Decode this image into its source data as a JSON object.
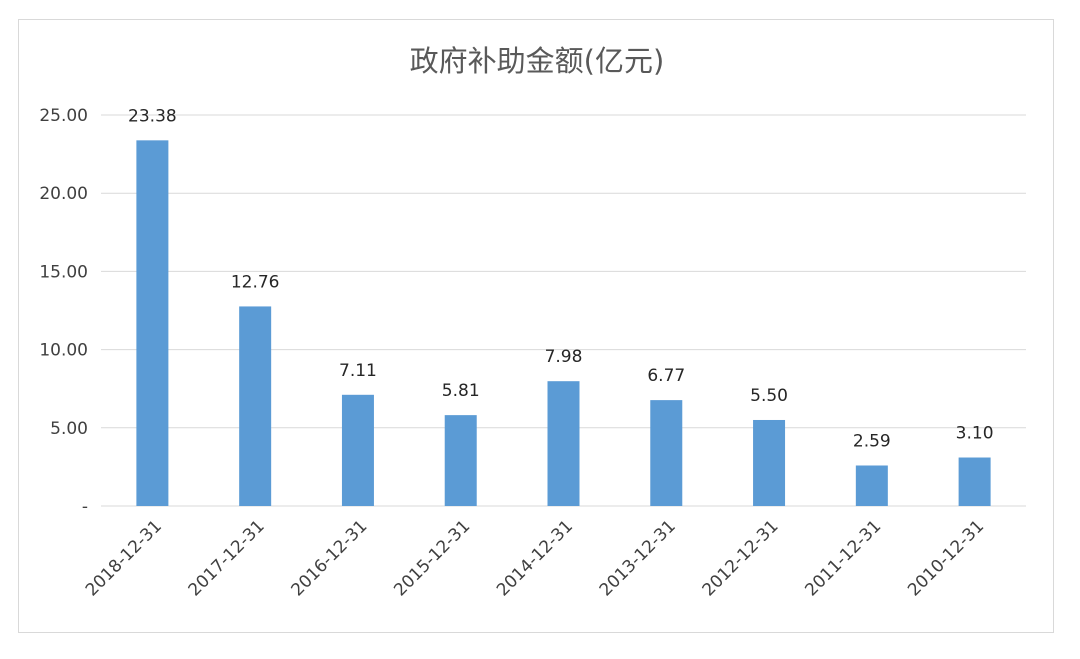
{
  "chart_data": {
    "type": "bar",
    "title": "政府补助金额(亿元)",
    "xlabel": "",
    "ylabel": "",
    "categories": [
      "2018-12-31",
      "2017-12-31",
      "2016-12-31",
      "2015-12-31",
      "2014-12-31",
      "2013-12-31",
      "2012-12-31",
      "2011-12-31",
      "2010-12-31"
    ],
    "values": [
      23.38,
      12.76,
      7.11,
      5.81,
      7.98,
      6.77,
      5.5,
      2.59,
      3.1
    ],
    "data_labels": [
      "23.38",
      "12.76",
      "7.11",
      "5.81",
      "7.98",
      "6.77",
      "5.50",
      "2.59",
      "3.10"
    ],
    "ylim": [
      0,
      25
    ],
    "yticks": [
      0,
      5,
      10,
      15,
      20,
      25
    ],
    "ytick_labels": [
      "-",
      "5.00",
      "10.00",
      "15.00",
      "20.00",
      "25.00"
    ],
    "grid": true,
    "legend": "none",
    "bar_color": "#5b9bd5",
    "grid_color": "#d9d9d9"
  }
}
